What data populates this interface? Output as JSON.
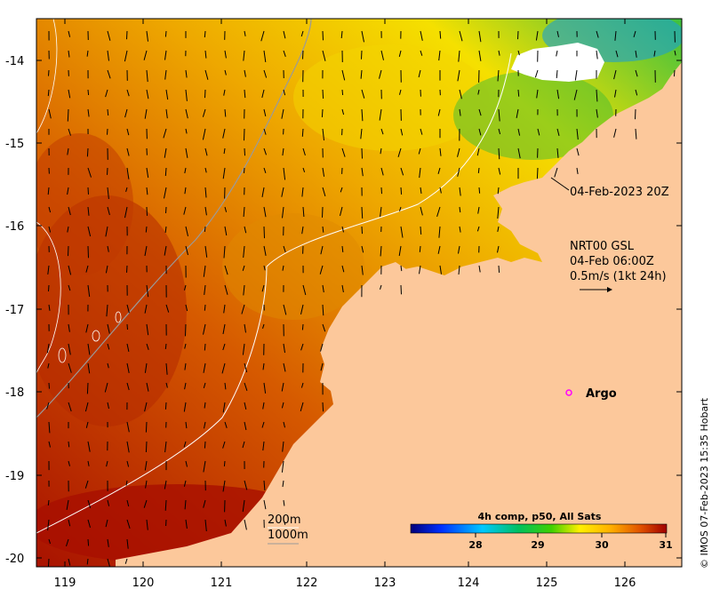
{
  "map": {
    "x_ticks": [
      "119",
      "120",
      "121",
      "122",
      "123",
      "124",
      "125",
      "126"
    ],
    "y_ticks": [
      "-14",
      "-15",
      "-16",
      "-17",
      "-18",
      "-19",
      "-20"
    ],
    "swath_time": "04-Feb-2023 20Z",
    "current_model": "NRT00 GSL",
    "current_time": "04-Feb 06:00Z",
    "current_scale": "0.5m/s (1kt 24h)",
    "argo_label": "Argo",
    "contour_200": "200m",
    "contour_1000": "1000m",
    "colorbar_title": "4h comp, p50, All Sats",
    "colorbar_ticks": [
      "28",
      "29",
      "30",
      "31"
    ],
    "credit": "© IMOS 07-Feb-2023 15:35 Hobart"
  },
  "colors": {
    "land": "#fcc89b",
    "cloud": "#ffffff",
    "argo": "#ff00ff",
    "sst_warm": "#b81e00",
    "sst_mid": "#f0a400",
    "sst_cool": "#1fb03a"
  }
}
